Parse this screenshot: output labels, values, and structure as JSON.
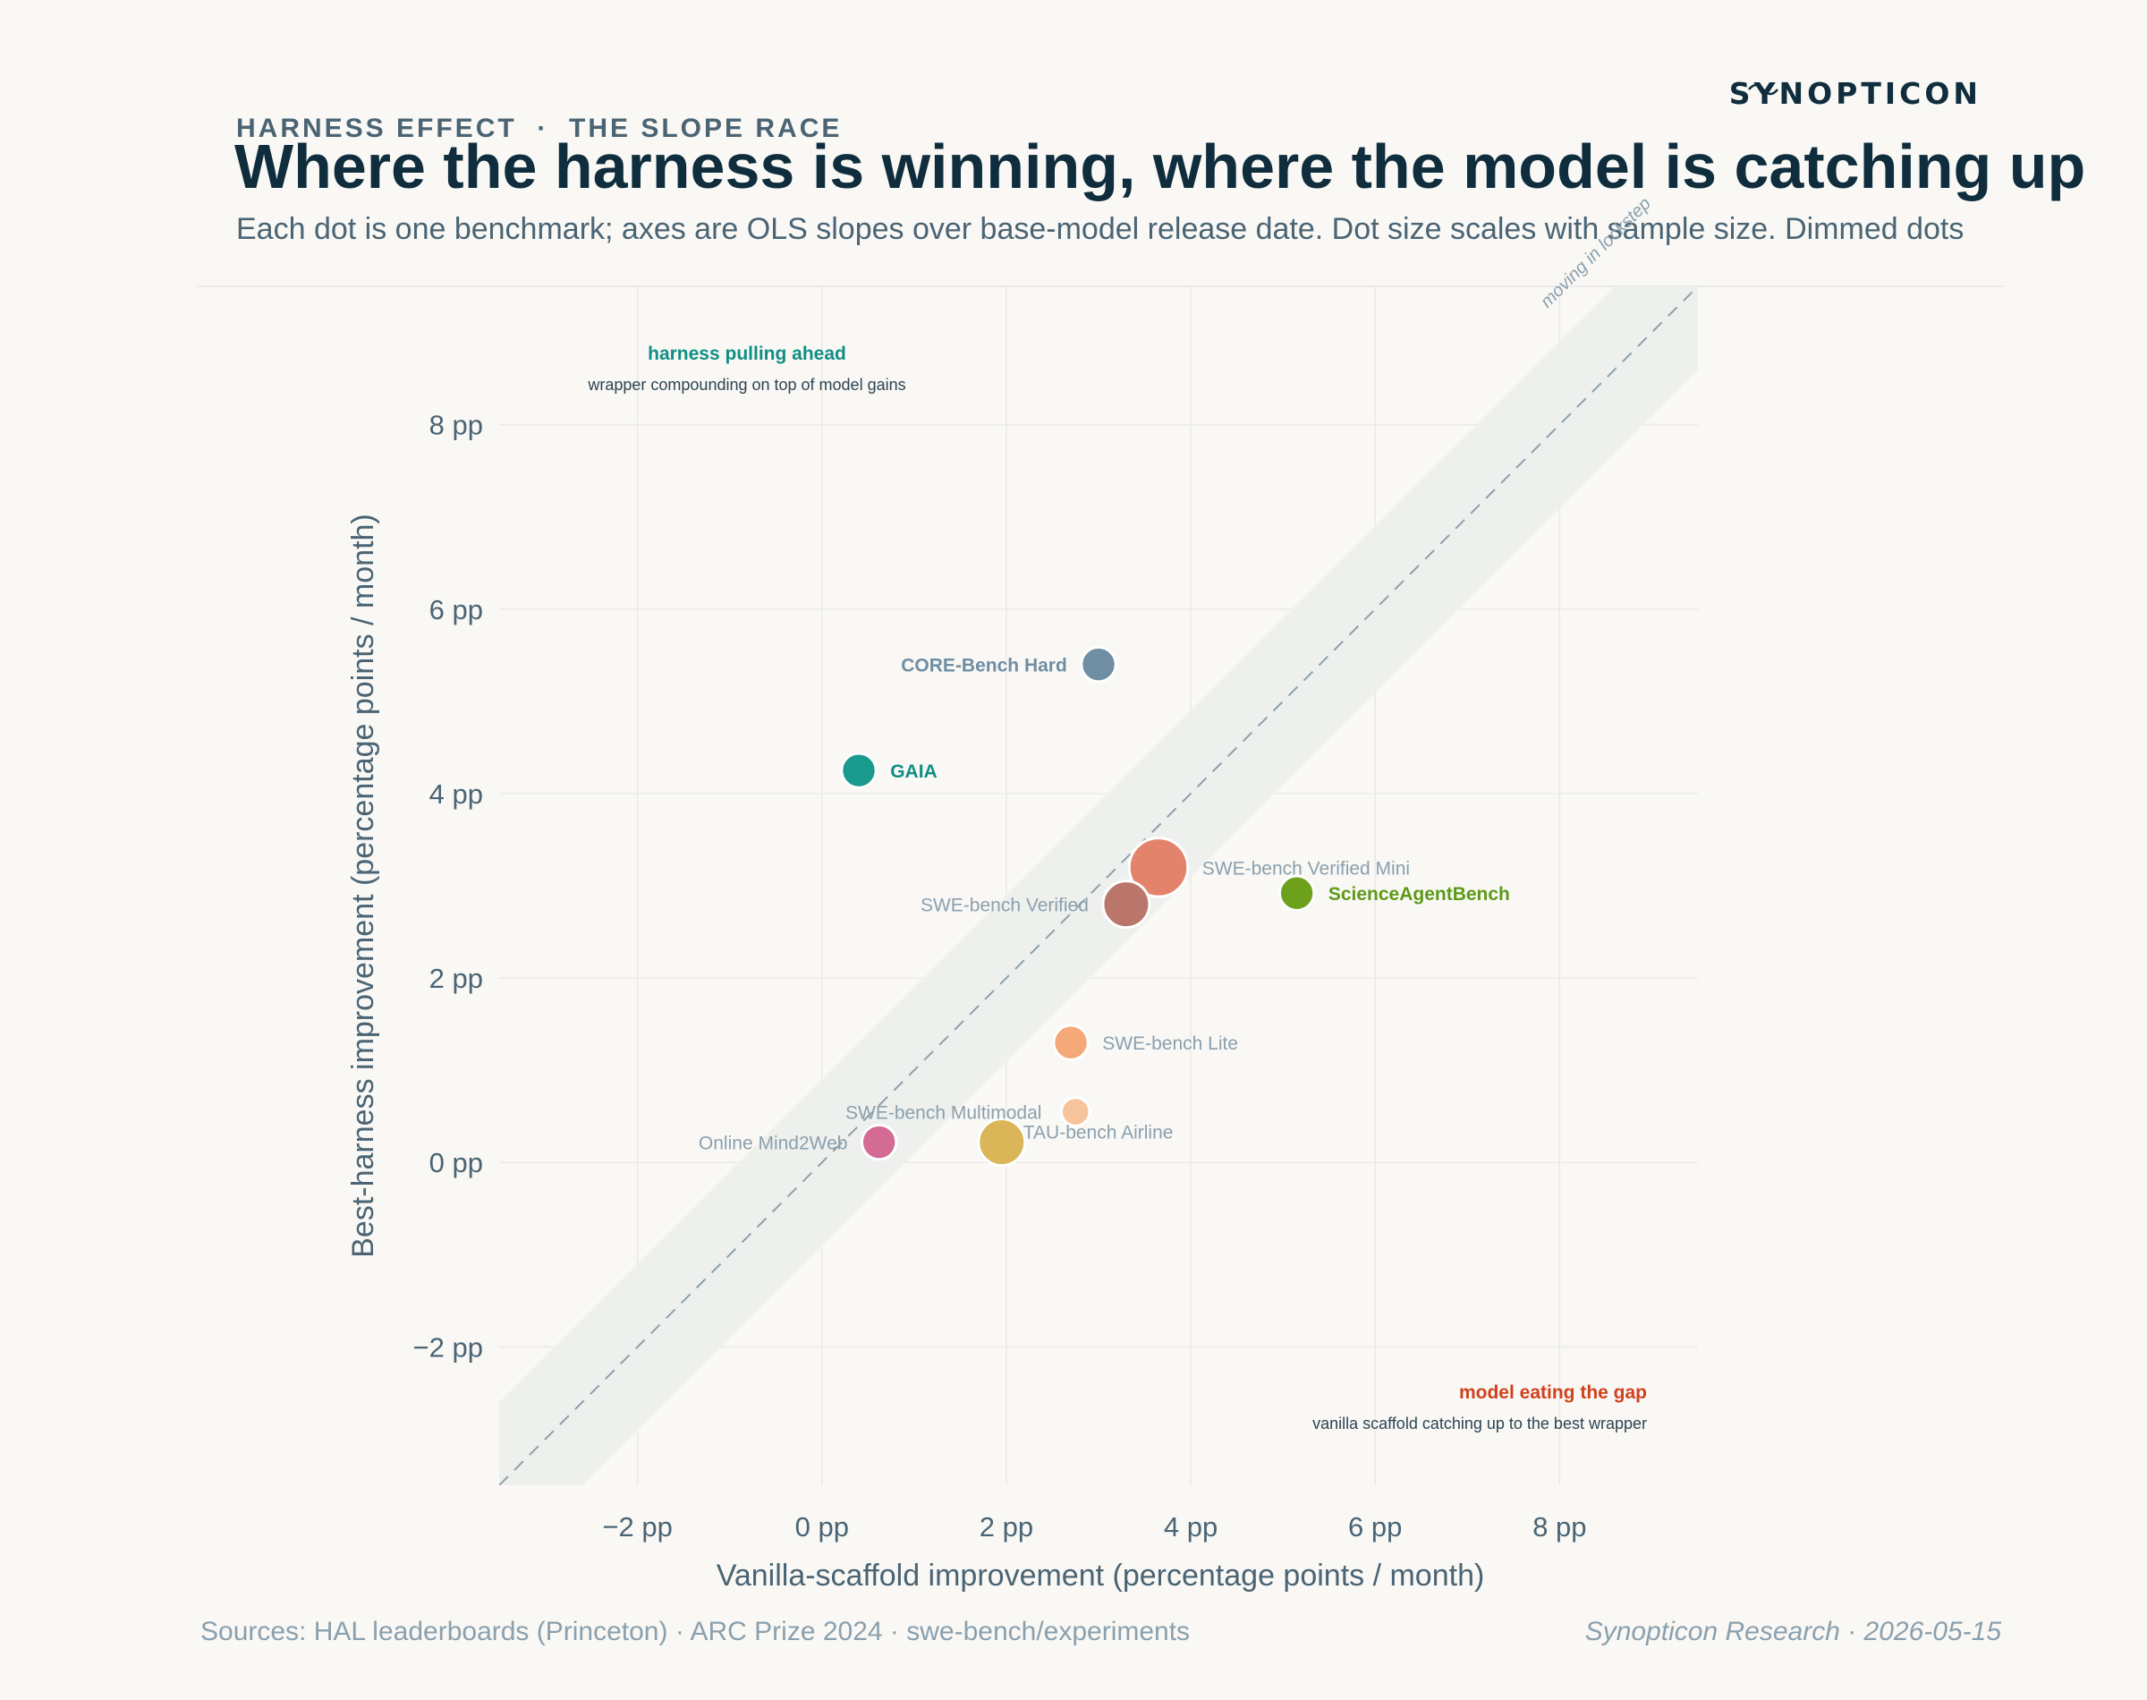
{
  "header": {
    "kicker": "HARNESS EFFECT  ·  THE SLOPE RACE",
    "title": "Where the harness is winning, where the model is catching up",
    "subtitle": "Each dot is one benchmark; axes are OLS slopes over base-model release date. Dot size scales with sample size. Dimmed dots",
    "brand": "SYNOPTICON"
  },
  "footer": {
    "sources": "Sources: HAL leaderboards (Princeton) · ARC Prize 2024 · swe-bench/experiments",
    "credit": "Synopticon Research · 2026-05-15"
  },
  "annotations": {
    "top_left_title": "harness pulling ahead",
    "top_left_sub": "wrapper compounding on top of model gains",
    "bottom_right_title": "model eating the gap",
    "bottom_right_sub": "vanilla scaffold catching up to the best wrapper",
    "diagonal_label": "moving in lockstep"
  },
  "colors": {
    "background": "#f9f8f5",
    "title": "#0f2d3d",
    "kicker": "#4a6474",
    "axis_text": "#4a6474",
    "muted": "#8aa0ae",
    "harness_accent": "#0f8f84",
    "model_accent": "#d2401c",
    "band": "#eef0ed",
    "diagonal": "#8e9fab"
  },
  "chart_data": {
    "type": "scatter",
    "xlabel": "Vanilla-scaffold improvement (percentage points / month)",
    "ylabel": "Best-harness improvement (percentage points / month)",
    "xlim": [
      -3.5,
      9.5
    ],
    "ylim": [
      -3.5,
      9.5
    ],
    "x_ticks": [
      -2,
      0,
      2,
      4,
      6,
      8
    ],
    "y_ticks": [
      -2,
      0,
      2,
      4,
      6,
      8
    ],
    "x_tick_labels": [
      "−2 pp",
      "0 pp",
      "2 pp",
      "4 pp",
      "6 pp",
      "8 pp"
    ],
    "y_tick_labels": [
      "−2 pp",
      "0 pp",
      "2 pp",
      "4 pp",
      "6 pp",
      "8 pp"
    ],
    "grid": true,
    "diagonal": {
      "slope": 1,
      "band_halfwidth": 0.9
    },
    "points": [
      {
        "name": "CORE-Bench Hard",
        "x": 3.0,
        "y": 5.4,
        "size": 3,
        "color": "#6f8ea4",
        "emphasis": "bold",
        "label_side": "left",
        "label_color": "#6f8ea4",
        "dimmed": false
      },
      {
        "name": "GAIA",
        "x": 0.4,
        "y": 4.25,
        "size": 3,
        "color": "#1a9a8f",
        "emphasis": "bold",
        "label_side": "right",
        "label_color": "#0f8f84",
        "dimmed": false
      },
      {
        "name": "SWE-bench Verified Mini",
        "x": 3.65,
        "y": 3.2,
        "size": 7,
        "color": "#e37a5f",
        "emphasis": "normal",
        "label_side": "right",
        "label_color": "#8aa0ae",
        "dimmed": true
      },
      {
        "name": "SWE-bench Verified",
        "x": 3.3,
        "y": 2.8,
        "size": 5,
        "color": "#b56b5e",
        "emphasis": "normal",
        "label_side": "left",
        "label_color": "#8aa0ae",
        "dimmed": true
      },
      {
        "name": "ScienceAgentBench",
        "x": 5.15,
        "y": 2.92,
        "size": 3,
        "color": "#6da11c",
        "emphasis": "bold",
        "label_side": "right",
        "label_color": "#5c9a16",
        "dimmed": false
      },
      {
        "name": "SWE-bench Lite",
        "x": 2.7,
        "y": 1.3,
        "size": 3,
        "color": "#f4a26d",
        "emphasis": "normal",
        "label_side": "right",
        "label_color": "#8aa0ae",
        "dimmed": true
      },
      {
        "name": "SWE-bench Multimodal",
        "x": 2.75,
        "y": 0.55,
        "size": 2,
        "color": "#f6be93",
        "emphasis": "normal",
        "label_side": "upper-left",
        "label_color": "#8aa0ae",
        "dimmed": true
      },
      {
        "name": "TAU-bench Airline",
        "x": 1.95,
        "y": 0.22,
        "size": 5,
        "color": "#d8b04a",
        "emphasis": "normal",
        "label_side": "upper-right",
        "label_color": "#8aa0ae",
        "dimmed": true
      },
      {
        "name": "Online Mind2Web",
        "x": 0.62,
        "y": 0.22,
        "size": 3,
        "color": "#d0608c",
        "emphasis": "normal",
        "label_side": "left",
        "label_color": "#8aa0ae",
        "dimmed": true
      }
    ]
  }
}
